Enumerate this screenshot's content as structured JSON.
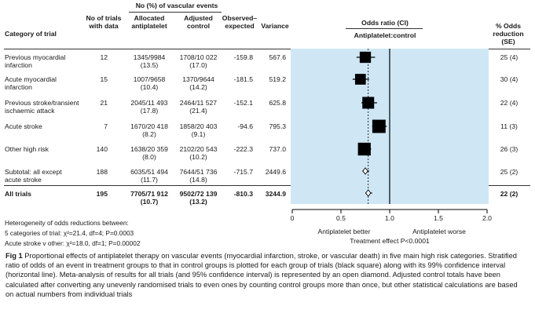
{
  "headers": {
    "group": "No (%) of vascular events",
    "category": "Category of trial",
    "trials": "No of trials with data",
    "allocated": "Allocated antiplatelet",
    "adjusted": "Adjusted control",
    "observed": "Observed– expected",
    "variance": "Variance",
    "odds": "Odds ratio (CI)",
    "odds_sub": "Antiplatelet:control",
    "reduction": "% Odds reduction (SE)"
  },
  "rows": [
    {
      "cat1": "Previous myocardial",
      "cat2": "infarction",
      "trials": "12",
      "alloc1": "1345/9984",
      "alloc2": "(13.5)",
      "adj1": "1708/10 022",
      "adj2": "(17.0)",
      "oe": "-159.8",
      "var": "567.6",
      "red": "25 (4)"
    },
    {
      "cat1": "Acute myocardial",
      "cat2": "infarction",
      "trials": "15",
      "alloc1": "1007/9658",
      "alloc2": "(10.4)",
      "adj1": "1370/9644",
      "adj2": "(14.2)",
      "oe": "-181.5",
      "var": "519.2",
      "red": "30 (4)"
    },
    {
      "cat1": "Previous stroke/transient",
      "cat2": "ischaemic attack",
      "trials": "21",
      "alloc1": "2045/11 493",
      "alloc2": "(17.8)",
      "adj1": "2464/11 527",
      "adj2": "(21.4)",
      "oe": "-152.1",
      "var": "625.8",
      "red": "22 (4)"
    },
    {
      "cat1": "Acute stroke",
      "cat2": "",
      "trials": "7",
      "alloc1": "1670/20 418",
      "alloc2": "(8.2)",
      "adj1": "1858/20 403",
      "adj2": "(9.1)",
      "oe": "-94.6",
      "var": "795.3",
      "red": "11 (3)"
    },
    {
      "cat1": "Other high risk",
      "cat2": "",
      "trials": "140",
      "alloc1": "1638/20 359",
      "alloc2": "(8.0)",
      "adj1": "2102/20 543",
      "adj2": "(10.2)",
      "oe": "-222.3",
      "var": "737.0",
      "red": "26 (3)"
    },
    {
      "cat1": "Subtotal: all except",
      "cat2": "acute stroke",
      "trials": "188",
      "alloc1": "6035/51 494",
      "alloc2": "(11.7)",
      "adj1": "7644/51 736",
      "adj2": "(14.8)",
      "oe": "-715.7",
      "var": "2449.6",
      "red": "25 (2)"
    },
    {
      "cat1": "All trials",
      "cat2": "",
      "trials": "195",
      "alloc1": "7705/71 912",
      "alloc2": "(10.7)",
      "adj1": "9502/72 139",
      "adj2": "(13.2)",
      "oe": "-810.3",
      "var": "3244.9",
      "red": "22 (2)"
    }
  ],
  "heterogeneity": {
    "title": "Heterogeneity of odds reductions between:",
    "line1": "5 categories of trial: χ²=21.4, df=4; P=0.0003",
    "line2": "Acute stroke v other: χ²=18.0, df=1; P=0.00002"
  },
  "axis": {
    "favours_left": "Antiplatelet better",
    "favours_right": "Antiplatelet worse",
    "effect": "Treatment effect P<0.0001"
  },
  "caption": {
    "label": "Fig 1",
    "text": "Proportional effects of antiplatelet therapy on vascular events (myocardial infarction, stroke, or vascular death) in five main high risk categories. Stratified ratio of odds of an event in treatment groups to that in control groups is plotted for each group of trials (black square) along with its 99% confidence interval (horizontal line). Meta-analysis of results for all trials (and 95% confidence interval) is represented by an open diamond. Adjusted control totals have been calculated after converting any unevenly randomised trials to even ones by counting control groups more than once, but other statistical calculations are based on actual numbers from individual trials"
  },
  "chart_data": {
    "type": "forest",
    "title": "Odds ratio (CI)",
    "xlabel": "Antiplatelet:control",
    "xlim": [
      0,
      2.0
    ],
    "ticks": [
      0,
      0.5,
      1.0,
      1.5,
      2.0
    ],
    "tick_labels": [
      "0",
      "0.5",
      "1.0",
      "1.5",
      "2.0"
    ],
    "reference_line": 1.0,
    "dashed_line": 0.78,
    "categories": [
      "Previous myocardial infarction",
      "Acute myocardial infarction",
      "Previous stroke/transient ischaemic attack",
      "Acute stroke",
      "Other high risk",
      "Subtotal: all except acute stroke",
      "All trials"
    ],
    "points": [
      {
        "or": 0.75,
        "lo": 0.66,
        "hi": 0.85,
        "marker": "square",
        "weight": 567.6
      },
      {
        "or": 0.7,
        "lo": 0.62,
        "hi": 0.79,
        "marker": "square",
        "weight": 519.2
      },
      {
        "or": 0.78,
        "lo": 0.71,
        "hi": 0.87,
        "marker": "square",
        "weight": 625.8
      },
      {
        "or": 0.89,
        "lo": 0.82,
        "hi": 0.97,
        "marker": "square",
        "weight": 795.3
      },
      {
        "or": 0.74,
        "lo": 0.68,
        "hi": 0.81,
        "marker": "square",
        "weight": 737.0
      },
      {
        "or": 0.75,
        "lo": 0.72,
        "hi": 0.79,
        "marker": "diamond",
        "weight": 2449.6
      },
      {
        "or": 0.78,
        "lo": 0.75,
        "hi": 0.82,
        "marker": "diamond",
        "weight": 3244.9
      }
    ]
  },
  "colors": {
    "plot_background": "#cfe7f5",
    "marker": "#000000"
  }
}
